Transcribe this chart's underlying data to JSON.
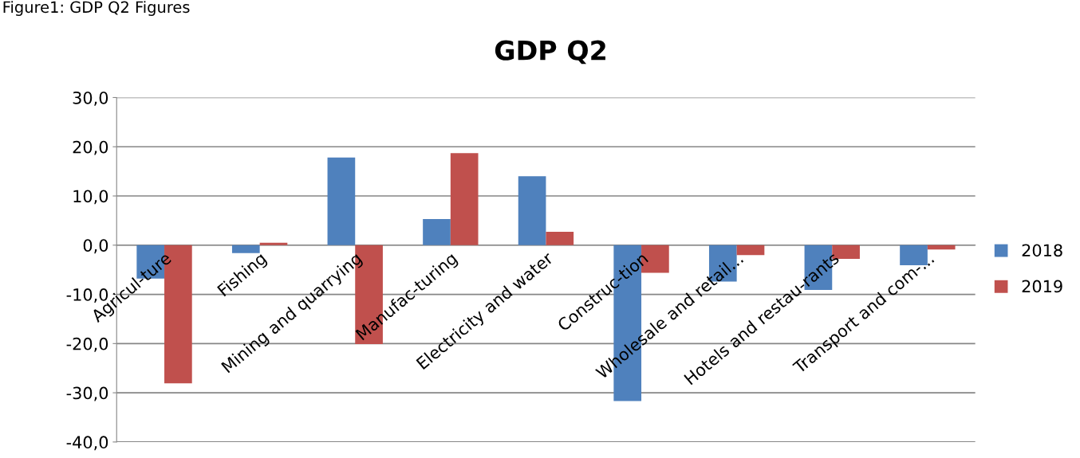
{
  "chart_data": {
    "type": "bar",
    "title": "GDP Q2",
    "annotations": [
      "Figure1: GDP Q2 Figures"
    ],
    "categories": [
      "Agricul-ture",
      "Fishing",
      "Mining and quarrying",
      "Manufac-turing",
      "Electricity and water",
      "Construc-tion",
      "Wholesale and retail...",
      "Hotels and restau-rants",
      "Transport and com-..."
    ],
    "series": [
      {
        "name": "2018",
        "color": "#4f81bd",
        "values": [
          -6.8,
          -1.6,
          17.8,
          5.3,
          14.0,
          -31.7,
          -7.4,
          -9.1,
          -4.1
        ]
      },
      {
        "name": "2019",
        "color": "#c0504d",
        "values": [
          -28.1,
          0.5,
          -20.1,
          18.7,
          2.7,
          -5.6,
          -2.0,
          -2.8,
          -0.9
        ]
      }
    ],
    "ylim": [
      -40,
      30
    ],
    "yticks": [
      {
        "value": -40,
        "label": "-40,0"
      },
      {
        "value": -30,
        "label": "-30,0"
      },
      {
        "value": -20,
        "label": "-20,0"
      },
      {
        "value": -10,
        "label": "-10,0"
      },
      {
        "value": 0,
        "label": "0,0"
      },
      {
        "value": 10,
        "label": "10,0"
      },
      {
        "value": 20,
        "label": "20,0"
      },
      {
        "value": 30,
        "label": "30,0"
      }
    ],
    "grid": "y",
    "legend": "right"
  }
}
